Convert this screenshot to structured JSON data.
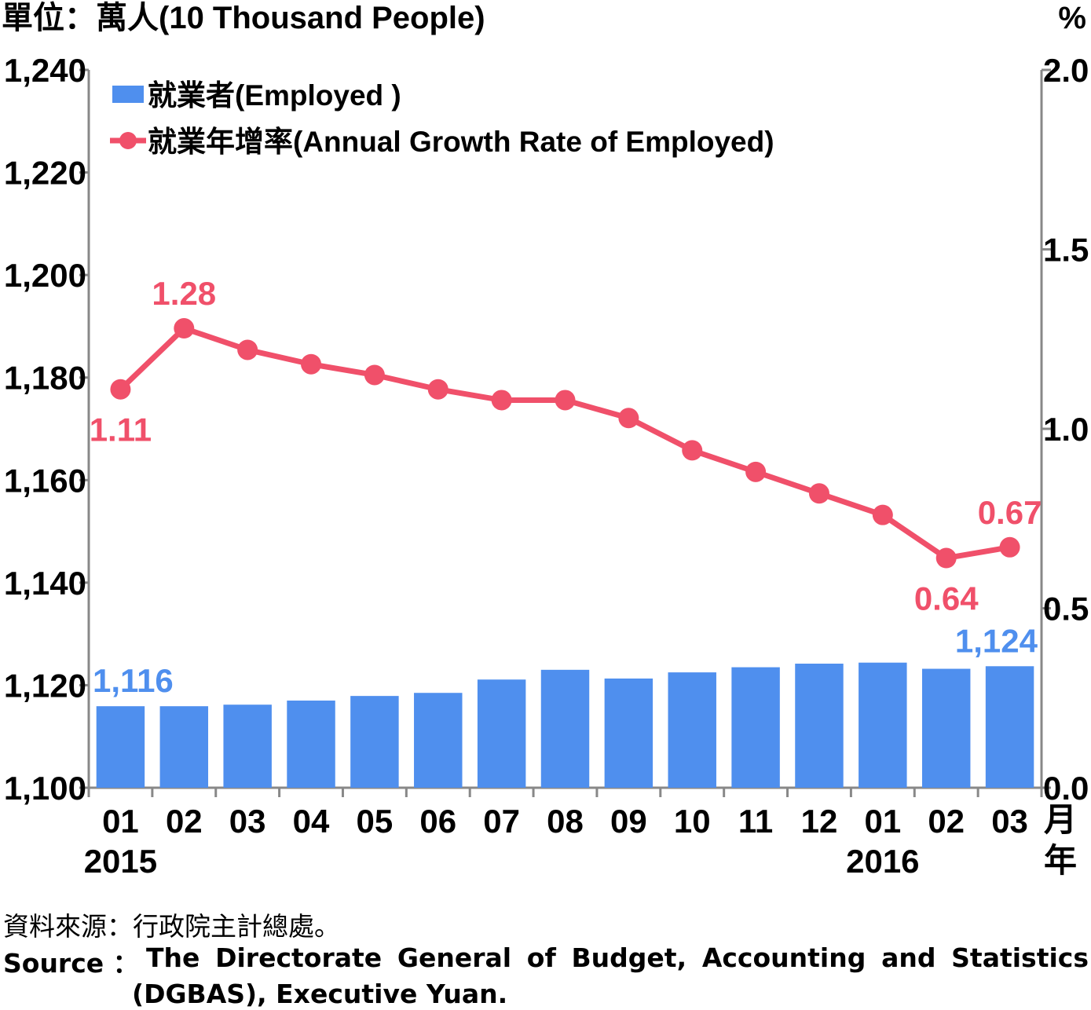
{
  "chart_data": {
    "type": "bar+line",
    "unit_left": "單位：萬人(10 Thousand People)",
    "unit_right": "%",
    "categories": [
      "01",
      "02",
      "03",
      "04",
      "05",
      "06",
      "07",
      "08",
      "09",
      "10",
      "11",
      "12",
      "01",
      "02",
      "03"
    ],
    "x_suffix": "月",
    "year_labels": [
      {
        "index": 0,
        "label": "2015"
      },
      {
        "index": 12,
        "label": "2016"
      }
    ],
    "year_suffix": "年",
    "series": [
      {
        "name": "就業者(Employed )",
        "type": "bar",
        "axis": "left",
        "color": "#4f8fee",
        "values": [
          1115.9,
          1115.9,
          1116.2,
          1117.0,
          1117.9,
          1118.5,
          1121.1,
          1123.0,
          1121.3,
          1122.5,
          1123.5,
          1124.2,
          1124.4,
          1123.2,
          1123.7
        ]
      },
      {
        "name": "就業年增率(Annual Growth Rate of Employed)",
        "type": "line",
        "axis": "right",
        "color": "#f0506a",
        "values": [
          1.11,
          1.28,
          1.22,
          1.18,
          1.15,
          1.11,
          1.08,
          1.08,
          1.03,
          0.94,
          0.88,
          0.82,
          0.76,
          0.64,
          0.67
        ]
      }
    ],
    "y_left": {
      "min": 1100,
      "max": 1240,
      "ticks": [
        "1,100",
        "1,120",
        "1,140",
        "1,160",
        "1,180",
        "1,200",
        "1,220",
        "1,240"
      ]
    },
    "y_right": {
      "min": 0.0,
      "max": 2.0,
      "ticks": [
        "0.0",
        "0.5",
        "1.0",
        "1.5",
        "2.0"
      ]
    },
    "bar_labels": [
      {
        "index": 0,
        "text": "1,116"
      },
      {
        "index": 14,
        "text": "1,124"
      }
    ],
    "line_labels": [
      {
        "index": 0,
        "text": "1.11",
        "position": "below"
      },
      {
        "index": 1,
        "text": "1.28",
        "position": "above"
      },
      {
        "index": 13,
        "text": "0.64",
        "position": "below"
      },
      {
        "index": 14,
        "text": "0.67",
        "position": "above"
      }
    ],
    "legend_position": "top-left"
  },
  "source": {
    "zh": "資料來源：行政院主計總處。",
    "en_label": "Source ：",
    "en_text": "The Directorate General of Budget, Accounting and Statistics",
    "en_text2": "(DGBAS), Executive Yuan."
  }
}
